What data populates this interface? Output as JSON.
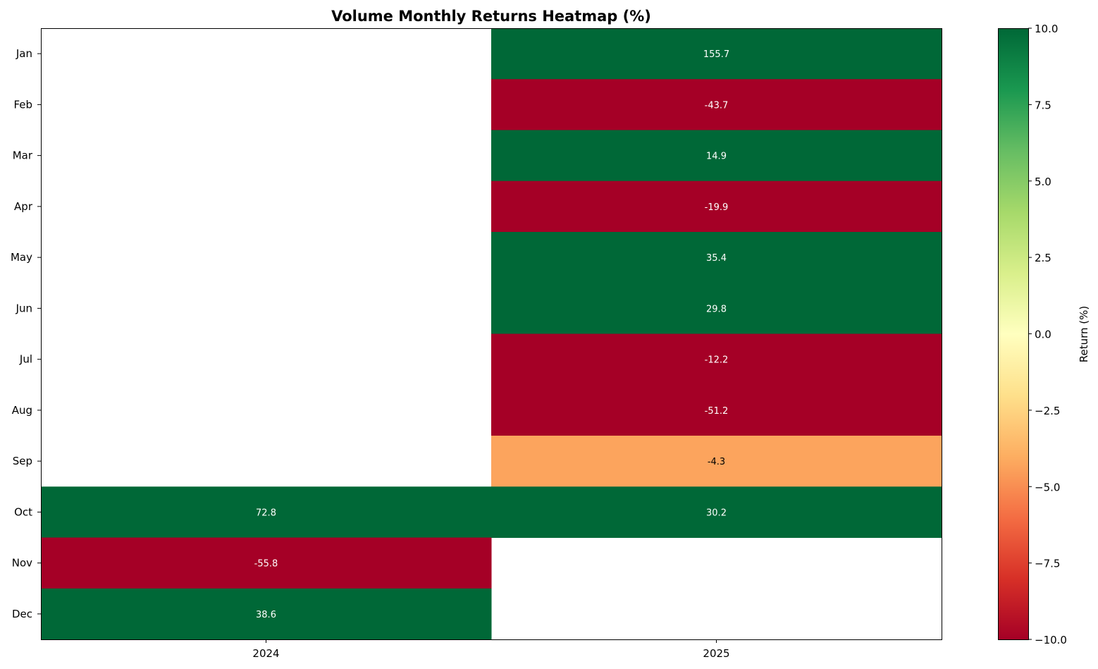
{
  "chart_data": {
    "type": "heatmap",
    "title": "Volume Monthly Returns Heatmap (%)",
    "xlabel": "",
    "ylabel": "",
    "columns": [
      "2024",
      "2025"
    ],
    "rows": [
      "Jan",
      "Feb",
      "Mar",
      "Apr",
      "May",
      "Jun",
      "Jul",
      "Aug",
      "Sep",
      "Oct",
      "Nov",
      "Dec"
    ],
    "values": [
      [
        null,
        155.7
      ],
      [
        null,
        -43.7
      ],
      [
        null,
        14.9
      ],
      [
        null,
        -19.9
      ],
      [
        null,
        35.4
      ],
      [
        null,
        29.8
      ],
      [
        null,
        -12.2
      ],
      [
        null,
        -51.2
      ],
      [
        null,
        -4.3
      ],
      [
        72.8,
        30.2
      ],
      [
        -55.8,
        null
      ],
      [
        38.6,
        null
      ]
    ],
    "colorscale": {
      "name": "RdYlGn",
      "min": -10,
      "max": 10,
      "stops": [
        {
          "v": 0.0,
          "c": "#a50026"
        },
        {
          "v": 0.1,
          "c": "#d73027"
        },
        {
          "v": 0.2,
          "c": "#f46d43"
        },
        {
          "v": 0.3,
          "c": "#fdae61"
        },
        {
          "v": 0.4,
          "c": "#fee08b"
        },
        {
          "v": 0.5,
          "c": "#ffffbf"
        },
        {
          "v": 0.6,
          "c": "#d9ef8b"
        },
        {
          "v": 0.7,
          "c": "#a6d96a"
        },
        {
          "v": 0.8,
          "c": "#66bd63"
        },
        {
          "v": 0.9,
          "c": "#1a9850"
        },
        {
          "v": 1.0,
          "c": "#006837"
        }
      ]
    },
    "colorbar": {
      "label": "Return (%)",
      "ticks": [
        "10.0",
        "7.5",
        "5.0",
        "2.5",
        "0.0",
        "−2.5",
        "−5.0",
        "−7.5",
        "−10.0"
      ],
      "tick_values": [
        10,
        7.5,
        5,
        2.5,
        0,
        -2.5,
        -5,
        -7.5,
        -10
      ]
    },
    "grid": false
  }
}
